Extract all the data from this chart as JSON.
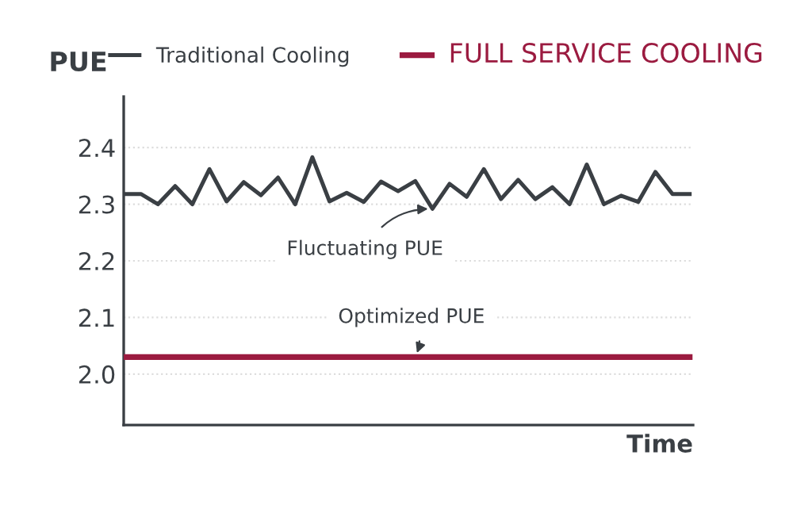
{
  "chart_data": {
    "type": "line",
    "ylabel": "PUE",
    "xlabel": "Time",
    "categories": [
      null,
      null,
      null,
      null,
      null,
      null,
      null,
      null,
      null,
      null,
      null,
      null,
      null,
      null,
      null,
      null,
      null,
      null,
      null,
      null,
      null,
      null,
      null,
      null,
      null,
      null,
      null,
      null,
      null,
      null,
      null,
      null,
      null,
      null
    ],
    "series": [
      {
        "name": "Traditional Cooling",
        "color": "#3a3f44",
        "values": [
          2.318,
          2.318,
          2.3,
          2.332,
          2.3,
          2.362,
          2.305,
          2.339,
          2.316,
          2.347,
          2.3,
          2.383,
          2.305,
          2.32,
          2.304,
          2.34,
          2.323,
          2.341,
          2.292,
          2.336,
          2.313,
          2.362,
          2.309,
          2.343,
          2.309,
          2.33,
          2.3,
          2.37,
          2.3,
          2.315,
          2.304,
          2.357,
          2.318,
          2.318
        ]
      },
      {
        "name": "FULL SERVICE COOLING",
        "color": "#9b1b40",
        "values": [
          2.03,
          2.03,
          2.03,
          2.03,
          2.03,
          2.03,
          2.03,
          2.03,
          2.03,
          2.03,
          2.03,
          2.03,
          2.03,
          2.03,
          2.03,
          2.03,
          2.03,
          2.03,
          2.03,
          2.03,
          2.03,
          2.03,
          2.03,
          2.03,
          2.03,
          2.03,
          2.03,
          2.03,
          2.03,
          2.03,
          2.03,
          2.03,
          2.03,
          2.03
        ]
      }
    ],
    "ylim": [
      1.91,
      2.49
    ],
    "yticks": [
      {
        "value": 2.0,
        "label": "2.0"
      },
      2.1,
      2.2,
      2.3,
      2.4
    ],
    "grid": "y",
    "legend": "top",
    "marker": "none",
    "line_style": "solid",
    "tick_labels": "y",
    "annotations": [
      {
        "text": "Fluctuating PUE",
        "y": 2.292
      },
      {
        "text": "Optimized PUE",
        "y": 2.03
      }
    ]
  }
}
